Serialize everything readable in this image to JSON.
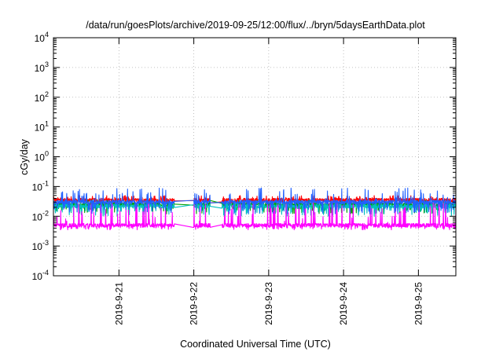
{
  "chart_data": {
    "type": "line",
    "title": "/data/run/goesPlots/archive/2019-09-25/12:00/flux/../bryn/5daysEarthData.plot",
    "xlabel": "Coordinated Universal Time (UTC)",
    "ylabel": "cGy/day",
    "yscale": "log",
    "ylim": [
      0.0001,
      10000
    ],
    "xlim": [
      "2019-09-20 03:00",
      "2019-09-25 12:00"
    ],
    "grid": true,
    "legend": "none",
    "x_ticks": [
      "2019-9-21",
      "2019-9-22",
      "2019-9-23",
      "2019-9-24",
      "2019-9-25"
    ],
    "y_ticks": [
      {
        "value": 0.0001,
        "base": "10",
        "exp": "-4"
      },
      {
        "value": 0.001,
        "base": "10",
        "exp": "-3"
      },
      {
        "value": 0.01,
        "base": "10",
        "exp": "-2"
      },
      {
        "value": 0.1,
        "base": "10",
        "exp": "-1"
      },
      {
        "value": 1,
        "base": "10",
        "exp": "0"
      },
      {
        "value": 10,
        "base": "10",
        "exp": "1"
      },
      {
        "value": 100,
        "base": "10",
        "exp": "2"
      },
      {
        "value": 1000,
        "base": "10",
        "exp": "3"
      },
      {
        "value": 10000,
        "base": "10",
        "exp": "4"
      }
    ],
    "data_gaps": [
      {
        "start": "2019-09-21 17:45",
        "end": "2019-09-22 00:00"
      },
      {
        "start": "2019-09-22 05:15",
        "end": "2019-09-22 09:00"
      }
    ],
    "series": [
      {
        "color": "#ff0000",
        "baseline": 0.035,
        "spike_max": 0.05,
        "dip_min": 0.028
      },
      {
        "color": "#00a000",
        "baseline": 0.025,
        "spike_max": 0.035,
        "dip_min": 0.012
      },
      {
        "color": "#00c0c0",
        "baseline": 0.022,
        "spike_max": 0.03,
        "dip_min": 0.01
      },
      {
        "color": "#ff00ff",
        "baseline": 0.005,
        "spike_max": 0.03,
        "dip_min": 0.0035
      },
      {
        "color": "#2060ff",
        "baseline": 0.03,
        "spike_max": 0.09,
        "dip_min": 0.012
      }
    ]
  }
}
